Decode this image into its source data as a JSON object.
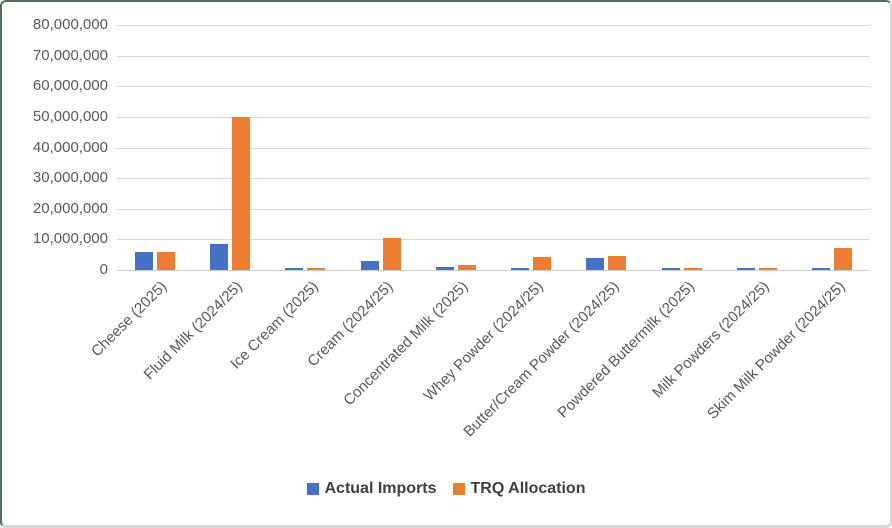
{
  "chart_data": {
    "type": "bar",
    "title": "",
    "xlabel": "",
    "ylabel": "",
    "categories": [
      "Cheese (2025)",
      "Fluid Milk (2024/25)",
      "Ice Cream (2025)",
      "Cream (2024/25)",
      "Concentrated Milk (2025)",
      "Whey Powder (2024/25)",
      "Butter/Cream Powder (2024/25)",
      "Powdered Buttermilk (2025)",
      "Milk Powders (2024/25)",
      "Skim Milk Powder (2024/25)"
    ],
    "series": [
      {
        "name": "Actual Imports",
        "color": "#4472C4",
        "values": [
          6000000,
          8500000,
          800000,
          2800000,
          900000,
          800000,
          4000000,
          800000,
          800000,
          500000
        ]
      },
      {
        "name": "TRQ Allocation",
        "color": "#ED7D31",
        "values": [
          6000000,
          50000000,
          700000,
          10500000,
          1500000,
          4300000,
          4700000,
          700000,
          700000,
          7300000
        ]
      }
    ],
    "ylim": [
      0,
      80000000
    ],
    "ytick_step": 10000000,
    "ytick_labels": [
      "0",
      "10,000,000",
      "20,000,000",
      "30,000,000",
      "40,000,000",
      "50,000,000",
      "60,000,000",
      "70,000,000",
      "80,000,000"
    ],
    "grid": "horizontal",
    "legend_position": "bottom"
  },
  "colors": {
    "frame_border_green": "#4e7157",
    "frame_border_gray": "#d6d6d6",
    "gridline": "#d9d9d9",
    "axis_text": "#595959",
    "legend_text": "#3f3f3f"
  }
}
